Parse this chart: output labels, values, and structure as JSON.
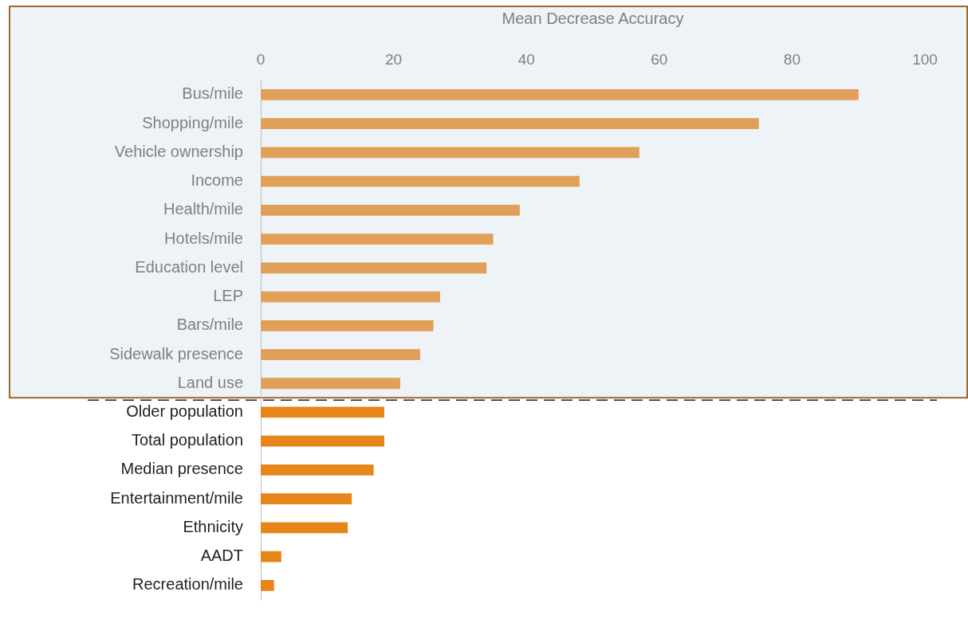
{
  "chart_data": {
    "type": "bar",
    "orientation": "horizontal",
    "xlabel": "Mean Decrease Accuracy",
    "categories": [
      "Bus/mile",
      "Shopping/mile",
      "Vehicle ownership",
      "Income",
      "Health/mile",
      "Hotels/mile",
      "Education level",
      "LEP",
      "Bars/mile",
      "Sidewalk presence",
      "Land use",
      "Older population",
      "Total population",
      "Median presence",
      "Entertainment/mile",
      "Ethnicity",
      "AADT",
      "Recreation/mile"
    ],
    "values": [
      90,
      75,
      57,
      48,
      39,
      35,
      34,
      27,
      26,
      24,
      21,
      18.6,
      18.6,
      17,
      13.7,
      13.1,
      3.1,
      2
    ],
    "colors": [
      "#e0a05a",
      "#e0a05a",
      "#e0a05a",
      "#e0a05a",
      "#e0a05a",
      "#e0a05a",
      "#e0a05a",
      "#e0a05a",
      "#e0a05a",
      "#e0a05a",
      "#e0a05a",
      "#e6861a",
      "#e6861a",
      "#e6861a",
      "#e6861a",
      "#e6861a",
      "#e6861a",
      "#e6861a"
    ],
    "xlim": [
      0,
      100
    ],
    "xticks": [
      0,
      20,
      40,
      60,
      80,
      100
    ],
    "grid": false,
    "legend": false,
    "bands": [
      {
        "axis": "y",
        "from": "Bus/mile",
        "to": "Land use",
        "color": "#eef3f8"
      }
    ]
  }
}
